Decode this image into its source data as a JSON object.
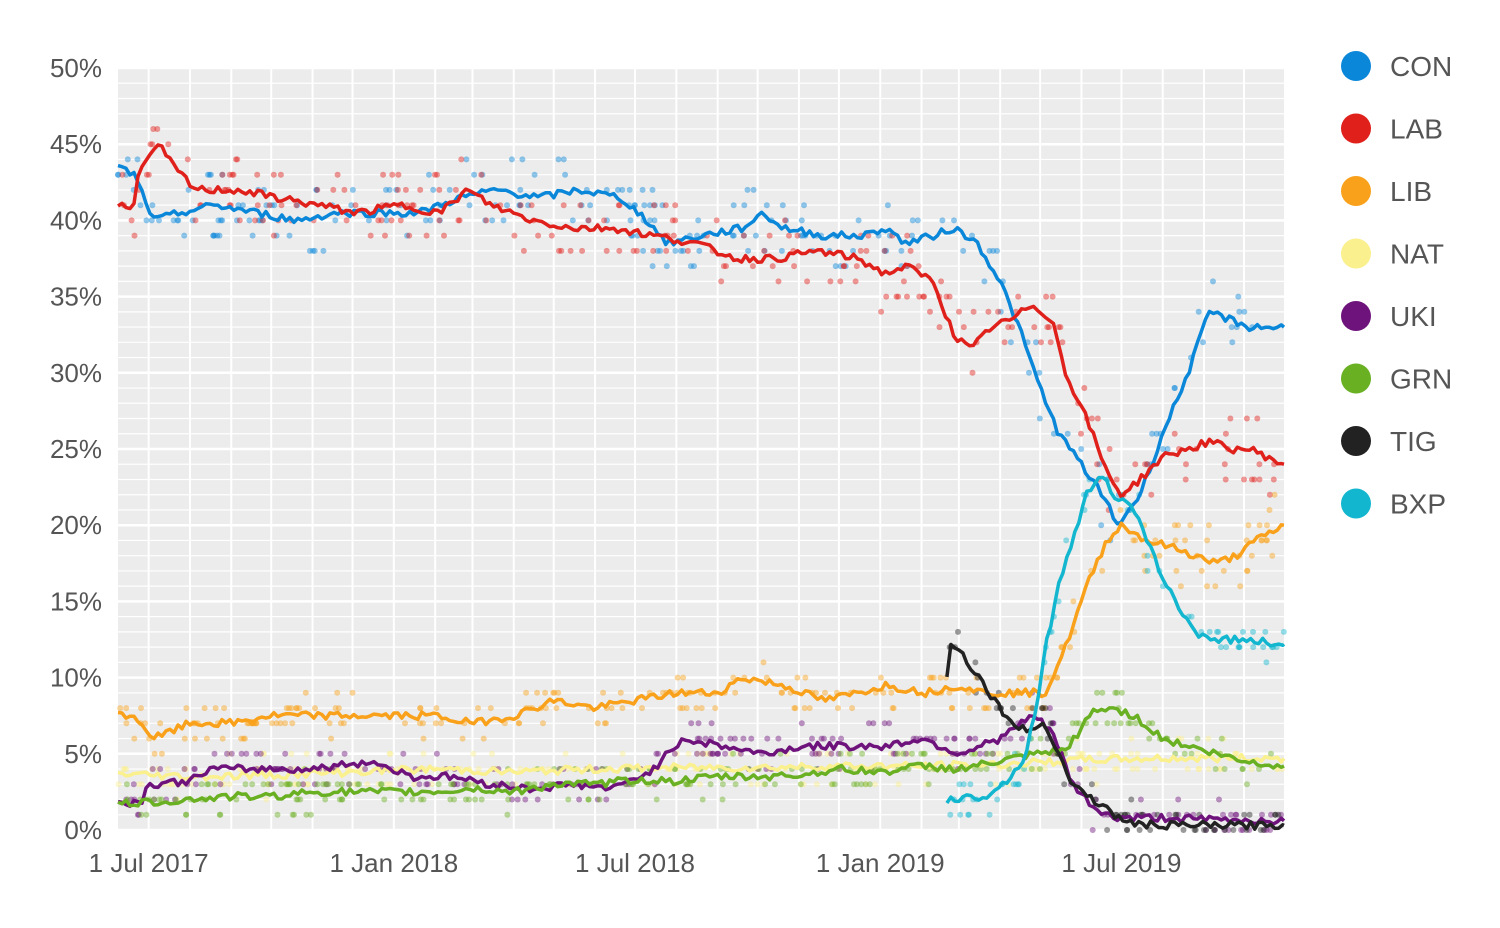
{
  "chart_data": {
    "type": "line",
    "title": "",
    "xlabel": "",
    "ylabel": "",
    "ylim": [
      0,
      50
    ],
    "x_range": [
      "2017-06-08",
      "2019-10-31"
    ],
    "y_ticks": [
      {
        "value": 0,
        "label": "0%"
      },
      {
        "value": 5,
        "label": "5%"
      },
      {
        "value": 10,
        "label": "10%"
      },
      {
        "value": 15,
        "label": "15%"
      },
      {
        "value": 20,
        "label": "20%"
      },
      {
        "value": 25,
        "label": "25%"
      },
      {
        "value": 30,
        "label": "30%"
      },
      {
        "value": 35,
        "label": "35%"
      },
      {
        "value": 40,
        "label": "40%"
      },
      {
        "value": 45,
        "label": "45%"
      },
      {
        "value": 50,
        "label": "50%"
      }
    ],
    "x_ticks": [
      {
        "date": "2017-07-01",
        "label": "1 Jul 2017"
      },
      {
        "date": "2018-01-01",
        "label": "1 Jan 2018"
      },
      {
        "date": "2018-07-01",
        "label": "1 Jul 2018"
      },
      {
        "date": "2019-01-01",
        "label": "1 Jan 2019"
      },
      {
        "date": "2019-07-01",
        "label": "1 Jul 2019"
      }
    ],
    "legend_position": "right",
    "series": [
      {
        "name": "CON",
        "color": "#0a87d9",
        "points": [
          [
            "2017-06-08",
            43.5
          ],
          [
            "2017-06-20",
            43
          ],
          [
            "2017-07-05",
            40
          ],
          [
            "2017-07-25",
            40.5
          ],
          [
            "2017-08-20",
            41
          ],
          [
            "2017-09-20",
            40.5
          ],
          [
            "2017-10-20",
            40
          ],
          [
            "2017-11-20",
            40.5
          ],
          [
            "2017-12-20",
            40.5
          ],
          [
            "2018-01-20",
            40.5
          ],
          [
            "2018-02-20",
            41.5
          ],
          [
            "2018-03-20",
            42
          ],
          [
            "2018-04-20",
            41.5
          ],
          [
            "2018-05-20",
            42
          ],
          [
            "2018-06-20",
            41.5
          ],
          [
            "2018-07-10",
            40
          ],
          [
            "2018-07-25",
            38.5
          ],
          [
            "2018-08-20",
            39
          ],
          [
            "2018-09-20",
            39.5
          ],
          [
            "2018-10-05",
            40.5
          ],
          [
            "2018-10-20",
            39.5
          ],
          [
            "2018-11-20",
            39
          ],
          [
            "2018-12-20",
            39
          ],
          [
            "2019-01-05",
            39.5
          ],
          [
            "2019-01-20",
            38.5
          ],
          [
            "2019-02-10",
            39
          ],
          [
            "2019-02-25",
            39.5
          ],
          [
            "2019-03-15",
            38.5
          ],
          [
            "2019-04-01",
            36
          ],
          [
            "2019-04-15",
            33
          ],
          [
            "2019-05-01",
            29
          ],
          [
            "2019-05-15",
            26
          ],
          [
            "2019-06-01",
            24
          ],
          [
            "2019-06-20",
            21.5
          ],
          [
            "2019-06-28",
            20
          ],
          [
            "2019-07-15",
            22
          ],
          [
            "2019-08-01",
            26
          ],
          [
            "2019-08-20",
            30
          ],
          [
            "2019-09-05",
            34
          ],
          [
            "2019-09-20",
            33.5
          ],
          [
            "2019-10-05",
            33
          ],
          [
            "2019-10-31",
            33
          ]
        ]
      },
      {
        "name": "LAB",
        "color": "#e0201b",
        "points": [
          [
            "2017-06-08",
            41
          ],
          [
            "2017-06-20",
            41
          ],
          [
            "2017-06-22",
            43
          ],
          [
            "2017-07-01",
            44
          ],
          [
            "2017-07-08",
            45
          ],
          [
            "2017-07-20",
            43.5
          ],
          [
            "2017-08-05",
            42
          ],
          [
            "2017-09-05",
            42
          ],
          [
            "2017-10-05",
            41.5
          ],
          [
            "2017-11-05",
            41
          ],
          [
            "2017-12-05",
            40.5
          ],
          [
            "2018-01-05",
            41
          ],
          [
            "2018-02-05",
            40.5
          ],
          [
            "2018-02-25",
            42
          ],
          [
            "2018-03-15",
            41
          ],
          [
            "2018-04-15",
            40
          ],
          [
            "2018-05-15",
            39.5
          ],
          [
            "2018-06-15",
            39.5
          ],
          [
            "2018-07-15",
            39
          ],
          [
            "2018-08-15",
            38.5
          ],
          [
            "2018-09-15",
            37.5
          ],
          [
            "2018-10-15",
            37.5
          ],
          [
            "2018-11-15",
            38
          ],
          [
            "2018-12-15",
            37.5
          ],
          [
            "2019-01-05",
            36.5
          ],
          [
            "2019-01-20",
            37
          ],
          [
            "2019-02-10",
            36
          ],
          [
            "2019-02-25",
            32.5
          ],
          [
            "2019-03-10",
            31.5
          ],
          [
            "2019-03-25",
            33
          ],
          [
            "2019-04-10",
            33.5
          ],
          [
            "2019-04-25",
            34.5
          ],
          [
            "2019-05-10",
            33.5
          ],
          [
            "2019-05-20",
            30
          ],
          [
            "2019-06-05",
            27
          ],
          [
            "2019-06-20",
            23.5
          ],
          [
            "2019-07-01",
            22
          ],
          [
            "2019-07-15",
            23
          ],
          [
            "2019-08-01",
            24.5
          ],
          [
            "2019-08-20",
            25
          ],
          [
            "2019-09-05",
            25.5
          ],
          [
            "2019-09-20",
            25
          ],
          [
            "2019-10-05",
            25
          ],
          [
            "2019-10-31",
            24
          ]
        ]
      },
      {
        "name": "LIB",
        "color": "#f9a11b",
        "points": [
          [
            "2017-06-08",
            7.5
          ],
          [
            "2017-06-20",
            7.5
          ],
          [
            "2017-07-05",
            6
          ],
          [
            "2017-08-01",
            7
          ],
          [
            "2017-09-01",
            7
          ],
          [
            "2017-10-01",
            7.5
          ],
          [
            "2017-11-01",
            7.5
          ],
          [
            "2017-12-01",
            7.5
          ],
          [
            "2018-01-01",
            7.5
          ],
          [
            "2018-02-01",
            7.5
          ],
          [
            "2018-03-01",
            7
          ],
          [
            "2018-04-01",
            7.5
          ],
          [
            "2018-05-01",
            8.5
          ],
          [
            "2018-06-01",
            8
          ],
          [
            "2018-07-01",
            8.5
          ],
          [
            "2018-08-01",
            9
          ],
          [
            "2018-09-01",
            9
          ],
          [
            "2018-09-20",
            10
          ],
          [
            "2018-10-20",
            9.5
          ],
          [
            "2018-11-20",
            8.5
          ],
          [
            "2018-12-15",
            9
          ],
          [
            "2019-01-05",
            9.5
          ],
          [
            "2019-02-05",
            9
          ],
          [
            "2019-03-01",
            9.5
          ],
          [
            "2019-03-20",
            9
          ],
          [
            "2019-04-20",
            9
          ],
          [
            "2019-05-05",
            9
          ],
          [
            "2019-05-20",
            12
          ],
          [
            "2019-06-05",
            16
          ],
          [
            "2019-06-20",
            19
          ],
          [
            "2019-07-01",
            20
          ],
          [
            "2019-07-20",
            19
          ],
          [
            "2019-08-10",
            18.5
          ],
          [
            "2019-08-25",
            18
          ],
          [
            "2019-09-10",
            17.5
          ],
          [
            "2019-09-25",
            18
          ],
          [
            "2019-10-10",
            19
          ],
          [
            "2019-10-31",
            20
          ]
        ]
      },
      {
        "name": "NAT",
        "color": "#fbf08e",
        "points": [
          [
            "2017-06-08",
            3.7
          ],
          [
            "2017-08-01",
            3.5
          ],
          [
            "2017-10-01",
            3.6
          ],
          [
            "2017-12-01",
            3.8
          ],
          [
            "2018-02-01",
            4
          ],
          [
            "2018-04-01",
            3.8
          ],
          [
            "2018-06-01",
            4
          ],
          [
            "2018-08-01",
            4.1
          ],
          [
            "2018-10-01",
            4.1
          ],
          [
            "2018-12-01",
            4.2
          ],
          [
            "2019-02-01",
            4.2
          ],
          [
            "2019-04-01",
            4.3
          ],
          [
            "2019-06-01",
            4.6
          ],
          [
            "2019-08-01",
            4.7
          ],
          [
            "2019-10-31",
            4.7
          ]
        ]
      },
      {
        "name": "UKI",
        "color": "#6f137c",
        "points": [
          [
            "2017-06-08",
            1.8
          ],
          [
            "2017-06-25",
            1.8
          ],
          [
            "2017-07-01",
            3
          ],
          [
            "2017-08-01",
            3.2
          ],
          [
            "2017-08-15",
            4
          ],
          [
            "2017-10-01",
            4
          ],
          [
            "2017-11-01",
            4
          ],
          [
            "2017-12-15",
            4.5
          ],
          [
            "2018-01-15",
            3.5
          ],
          [
            "2018-02-15",
            3.5
          ],
          [
            "2018-03-15",
            3
          ],
          [
            "2018-04-15",
            2.7
          ],
          [
            "2018-05-15",
            3
          ],
          [
            "2018-06-15",
            2.7
          ],
          [
            "2018-07-15",
            4
          ],
          [
            "2018-08-05",
            6
          ],
          [
            "2018-09-05",
            5.5
          ],
          [
            "2018-10-05",
            5
          ],
          [
            "2018-11-05",
            5.5
          ],
          [
            "2018-12-05",
            5.5
          ],
          [
            "2019-01-05",
            5.5
          ],
          [
            "2019-02-01",
            6
          ],
          [
            "2019-03-01",
            5
          ],
          [
            "2019-04-01",
            6
          ],
          [
            "2019-04-25",
            7.5
          ],
          [
            "2019-05-10",
            6.5
          ],
          [
            "2019-05-25",
            3
          ],
          [
            "2019-06-10",
            1.5
          ],
          [
            "2019-06-25",
            0.8
          ],
          [
            "2019-08-01",
            0.8
          ],
          [
            "2019-09-01",
            0.7
          ],
          [
            "2019-10-31",
            0.6
          ]
        ]
      },
      {
        "name": "GRN",
        "color": "#6ab023",
        "points": [
          [
            "2017-06-08",
            1.7
          ],
          [
            "2017-07-01",
            1.8
          ],
          [
            "2017-08-01",
            2
          ],
          [
            "2017-09-01",
            2.2
          ],
          [
            "2017-10-01",
            2.2
          ],
          [
            "2017-11-01",
            2.5
          ],
          [
            "2017-12-01",
            2.5
          ],
          [
            "2018-01-01",
            2.5
          ],
          [
            "2018-02-01",
            2.5
          ],
          [
            "2018-03-01",
            2.7
          ],
          [
            "2018-04-01",
            2.5
          ],
          [
            "2018-05-01",
            3
          ],
          [
            "2018-06-01",
            3
          ],
          [
            "2018-07-01",
            3.3
          ],
          [
            "2018-08-01",
            3.2
          ],
          [
            "2018-09-01",
            3.5
          ],
          [
            "2018-10-01",
            3.5
          ],
          [
            "2018-11-01",
            3.6
          ],
          [
            "2018-12-01",
            4
          ],
          [
            "2019-01-01",
            3.8
          ],
          [
            "2019-02-01",
            4.2
          ],
          [
            "2019-03-01",
            4
          ],
          [
            "2019-04-01",
            4.5
          ],
          [
            "2019-05-01",
            5
          ],
          [
            "2019-05-20",
            5.2
          ],
          [
            "2019-06-10",
            7.8
          ],
          [
            "2019-06-25",
            8
          ],
          [
            "2019-07-10",
            7.5
          ],
          [
            "2019-08-01",
            6
          ],
          [
            "2019-08-20",
            5.5
          ],
          [
            "2019-09-10",
            5
          ],
          [
            "2019-10-01",
            4.5
          ],
          [
            "2019-10-31",
            4.2
          ]
        ]
      },
      {
        "name": "TIG",
        "color": "#222222",
        "points": [
          [
            "2019-02-20",
            10
          ],
          [
            "2019-02-21",
            14
          ],
          [
            "2019-02-23",
            12
          ],
          [
            "2019-03-01",
            12
          ],
          [
            "2019-03-08",
            11
          ],
          [
            "2019-03-20",
            9.5
          ],
          [
            "2019-04-01",
            8
          ],
          [
            "2019-04-10",
            7
          ],
          [
            "2019-04-20",
            6.5
          ],
          [
            "2019-05-05",
            7
          ],
          [
            "2019-05-15",
            5
          ],
          [
            "2019-05-25",
            3
          ],
          [
            "2019-06-10",
            2
          ],
          [
            "2019-06-25",
            1
          ],
          [
            "2019-07-10",
            0.4
          ],
          [
            "2019-08-01",
            0.3
          ],
          [
            "2019-10-31",
            0.3
          ]
        ]
      },
      {
        "name": "BXP",
        "color": "#12b6cf",
        "points": [
          [
            "2019-02-20",
            2
          ],
          [
            "2019-03-20",
            2.2
          ],
          [
            "2019-04-10",
            3.5
          ],
          [
            "2019-04-20",
            5
          ],
          [
            "2019-04-28",
            8
          ],
          [
            "2019-05-05",
            12
          ],
          [
            "2019-05-15",
            16
          ],
          [
            "2019-05-25",
            19
          ],
          [
            "2019-06-05",
            22
          ],
          [
            "2019-06-15",
            23.5
          ],
          [
            "2019-06-25",
            22
          ],
          [
            "2019-07-10",
            21
          ],
          [
            "2019-07-25",
            18
          ],
          [
            "2019-08-10",
            15
          ],
          [
            "2019-08-25",
            13
          ],
          [
            "2019-09-10",
            12.5
          ],
          [
            "2019-10-01",
            12.5
          ],
          [
            "2019-10-31",
            12.2
          ]
        ]
      }
    ]
  }
}
